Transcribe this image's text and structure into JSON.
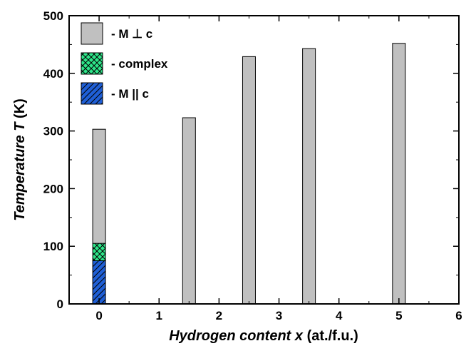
{
  "chart_data": {
    "type": "bar",
    "stacked": true,
    "xlabel": "Hydrogen content x (at./f.u.)",
    "xlabel_parts": {
      "italic": "Hydrogen content x",
      "plain": " (at./f.u.)"
    },
    "ylabel": "Temperature T (K)",
    "ylabel_parts": {
      "italic": "Temperature T",
      "plain": " (K)"
    },
    "xlim": [
      -0.5,
      6
    ],
    "ylim": [
      0,
      500
    ],
    "x_ticks": [
      0,
      1,
      2,
      3,
      4,
      5,
      6
    ],
    "y_ticks": [
      0,
      100,
      200,
      300,
      400,
      500
    ],
    "grid": false,
    "legend_position": "top-left",
    "series": [
      {
        "name": "- M || c",
        "color": "#1f5fd6",
        "pattern": "diagonal-hatch",
        "points": [
          {
            "x": 0,
            "y0": 0,
            "y1": 75
          }
        ]
      },
      {
        "name": "- complex",
        "color": "#2ee68a",
        "pattern": "cross-hatch",
        "points": [
          {
            "x": 0,
            "y0": 75,
            "y1": 105
          }
        ]
      },
      {
        "name": "- M ⊥ c",
        "color": "#c0c0c0",
        "pattern": "solid",
        "points": [
          {
            "x": 0,
            "y0": 105,
            "y1": 303
          },
          {
            "x": 1.5,
            "y0": 0,
            "y1": 323
          },
          {
            "x": 2.5,
            "y0": 0,
            "y1": 429
          },
          {
            "x": 3.5,
            "y0": 0,
            "y1": 443
          },
          {
            "x": 5,
            "y0": 0,
            "y1": 452
          }
        ]
      }
    ],
    "legend_order": [
      "- M ⊥ c",
      "- complex",
      "- M || c"
    ]
  }
}
